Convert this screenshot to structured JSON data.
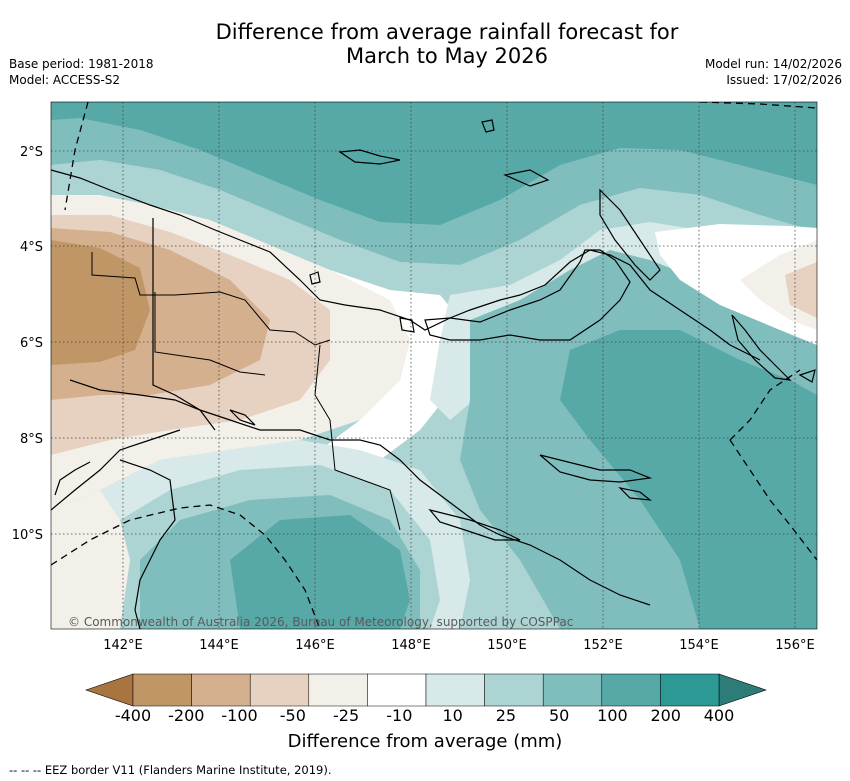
{
  "header": {
    "title_line1": "Difference from average rainfall forecast for",
    "title_line2": "March to May 2026",
    "base_period": "Base period: 1981-2018",
    "model": "Model: ACCESS-S2",
    "model_run": "Model run: 14/02/2026",
    "issued": "Issued: 17/02/2026"
  },
  "map": {
    "lon_labels": [
      "142°E",
      "144°E",
      "146°E",
      "148°E",
      "150°E",
      "152°E",
      "154°E",
      "156°E"
    ],
    "lat_labels": [
      "2°S",
      "4°S",
      "6°S",
      "8°S",
      "10°S"
    ],
    "credit": "© Commonwealth of Australia 2026, Bureau of Meteorology, supported by COSPPac"
  },
  "colorbar": {
    "colors": [
      "#a8743f",
      "#c19667",
      "#d4b08f",
      "#e7d1c0",
      "#f3efe9",
      "#ffffff",
      "#d7e9e8",
      "#acd4d3",
      "#80bebd",
      "#57a9a8",
      "#2d9994",
      "#2d7c78"
    ],
    "ticks": [
      "-400",
      "-200",
      "-100",
      "-50",
      "-25",
      "-10",
      "10",
      "25",
      "50",
      "100",
      "200",
      "400"
    ],
    "label": "Difference from average (mm)"
  },
  "legend": {
    "eez_marker": "--  --  --",
    "eez_text": "EEZ border V11 (Flanders Marine Institute, 2019)."
  }
}
